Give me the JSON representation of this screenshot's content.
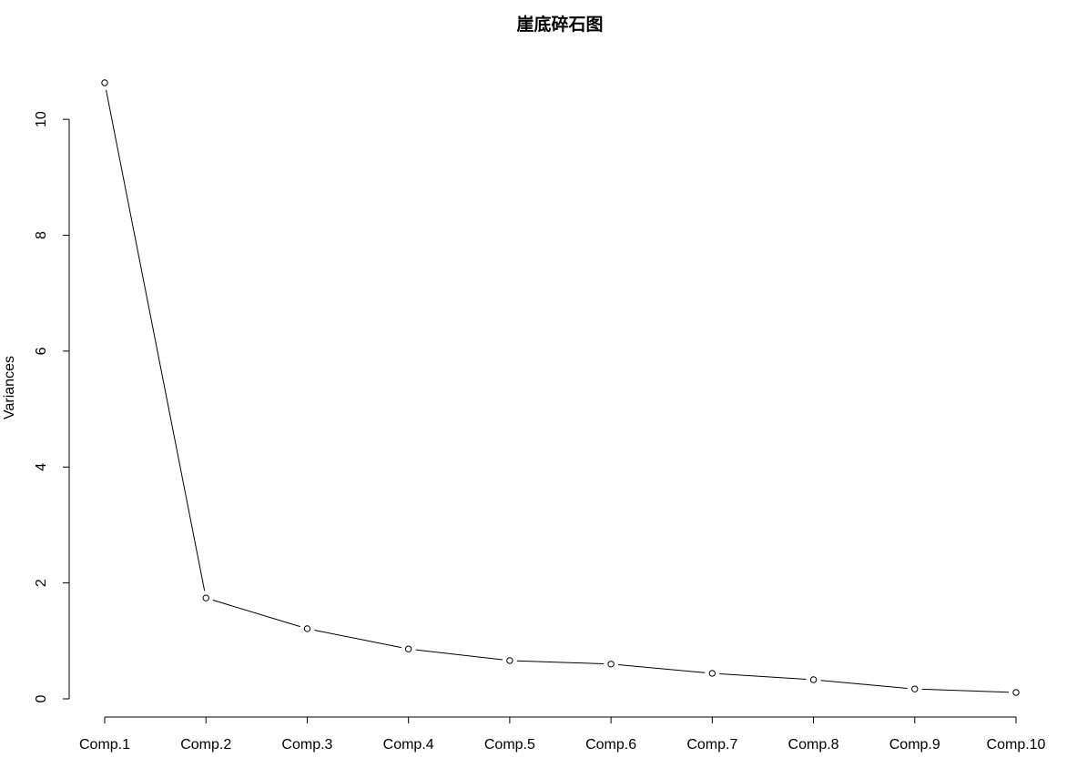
{
  "chart_data": {
    "type": "line",
    "title": "崖底碎石图",
    "xlabel": "",
    "ylabel": "Variances",
    "categories": [
      "Comp.1",
      "Comp.2",
      "Comp.3",
      "Comp.4",
      "Comp.5",
      "Comp.6",
      "Comp.7",
      "Comp.8",
      "Comp.9",
      "Comp.10"
    ],
    "values": [
      10.63,
      1.74,
      1.21,
      0.86,
      0.66,
      0.6,
      0.44,
      0.33,
      0.17,
      0.11
    ],
    "yticks": [
      0,
      2,
      4,
      6,
      8,
      10
    ],
    "ylim": [
      0,
      10.63
    ],
    "grid": false,
    "legend": "none",
    "point_marker": "open-circle"
  }
}
